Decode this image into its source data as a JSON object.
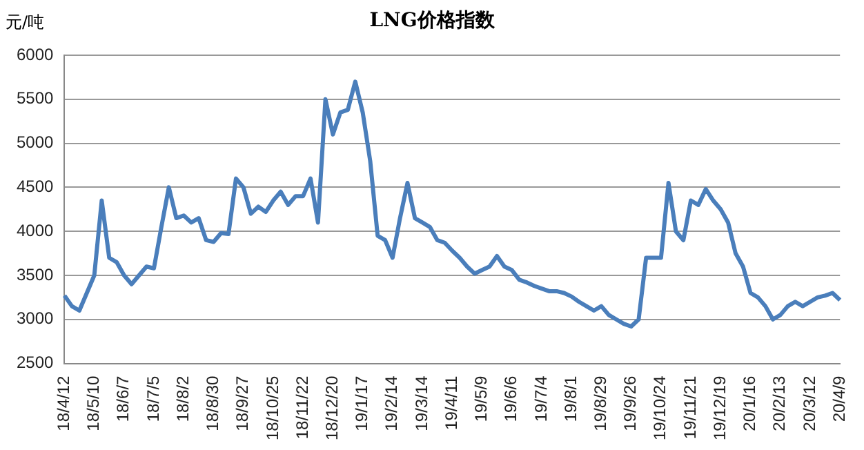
{
  "chart_data": {
    "type": "line",
    "title": "LNG价格指数",
    "ylabel": "元/吨",
    "categories": [
      "18/4/12",
      null,
      null,
      null,
      "18/5/10",
      null,
      null,
      null,
      "18/6/7",
      null,
      null,
      null,
      "18/7/5",
      null,
      null,
      null,
      "18/8/2",
      null,
      null,
      null,
      "18/8/30",
      null,
      null,
      null,
      "18/9/27",
      null,
      null,
      null,
      "18/10/25",
      null,
      null,
      null,
      "18/11/22",
      null,
      null,
      null,
      "18/12/20",
      null,
      null,
      null,
      "19/1/17",
      null,
      null,
      null,
      "19/2/14",
      null,
      null,
      null,
      "19/3/14",
      null,
      null,
      null,
      "19/4/11",
      null,
      null,
      null,
      "19/5/9",
      null,
      null,
      null,
      "19/6/6",
      null,
      null,
      null,
      "19/7/4",
      null,
      null,
      null,
      "19/8/1",
      null,
      null,
      null,
      "19/8/29",
      null,
      null,
      null,
      "19/9/26",
      null,
      null,
      null,
      "19/10/24",
      null,
      null,
      null,
      "19/11/21",
      null,
      null,
      null,
      "19/12/19",
      null,
      null,
      null,
      "20/1/16",
      null,
      null,
      null,
      "20/2/13",
      null,
      null,
      null,
      "20/3/12",
      null,
      null,
      null,
      "20/4/9"
    ],
    "series": [
      {
        "color": "#4a7ebb",
        "values": [
          3270,
          3150,
          3100,
          3300,
          3500,
          4350,
          3700,
          3650,
          3500,
          3400,
          3500,
          3600,
          3580,
          4050,
          4500,
          4150,
          4180,
          4100,
          4150,
          3900,
          3880,
          3980,
          3970,
          4600,
          4500,
          4200,
          4280,
          4220,
          4350,
          4450,
          4300,
          4400,
          4400,
          4600,
          4100,
          5500,
          5100,
          5350,
          5380,
          5700,
          5350,
          4800,
          3950,
          3900,
          3700,
          4150,
          4550,
          4150,
          4100,
          4050,
          3900,
          3870,
          3780,
          3700,
          3600,
          3520,
          3560,
          3600,
          3720,
          3600,
          3560,
          3450,
          3420,
          3380,
          3350,
          3320,
          3320,
          3300,
          3260,
          3200,
          3150,
          3100,
          3150,
          3050,
          3000,
          2950,
          2920,
          3000,
          3700,
          3700,
          3700,
          4550,
          4000,
          3900,
          4350,
          4300,
          4480,
          4350,
          4250,
          4100,
          3750,
          3600,
          3300,
          3250,
          3150,
          3000,
          3050,
          3150,
          3200,
          3150,
          3200,
          3250,
          3270,
          3300,
          3220
        ]
      }
    ],
    "ylim": [
      2500,
      6000
    ],
    "yticks": [
      2500,
      3000,
      3500,
      4000,
      4500,
      5000,
      5500,
      6000
    ],
    "grid": "y",
    "legend": false,
    "marker": "none",
    "line_style": "solid"
  }
}
